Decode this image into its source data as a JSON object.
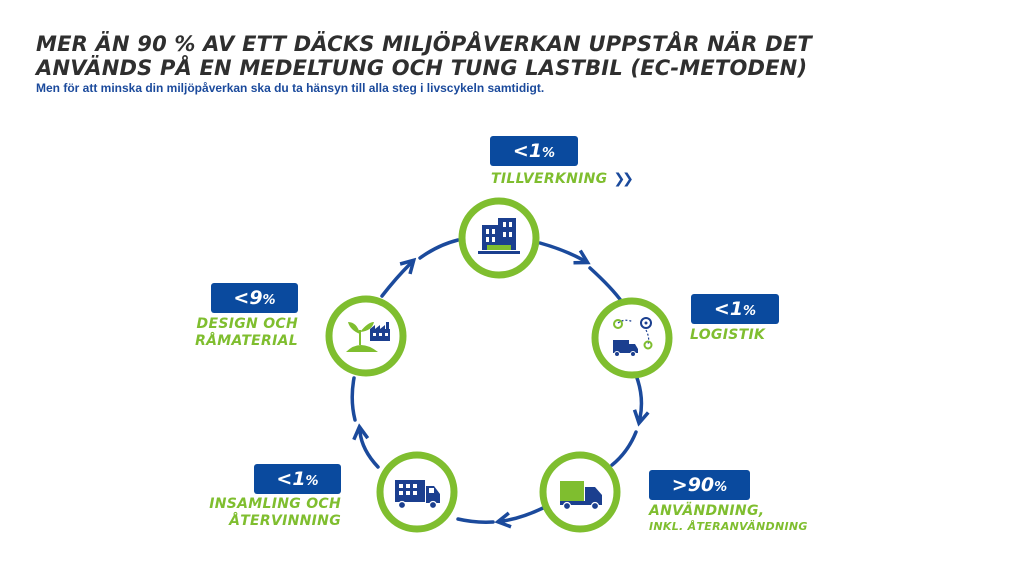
{
  "header": {
    "title_line1": "MER ÄN 90 % AV ETT DÄCKS MILJÖPÅVERKAN UPPSTÅR NÄR DET",
    "title_line2": "ANVÄNDS PÅ EN MEDELTUNG OCH TUNG LASTBIL (EC-METODEN)",
    "subtitle": "Men för att minska din miljöpåverkan ska du ta hänsyn till alla steg i livscykeln samtidigt."
  },
  "colors": {
    "blue": "#0a4a9e",
    "green": "#7fbe2f",
    "title": "#2f2f2f"
  },
  "stages": [
    {
      "id": "tillverkning",
      "value": "<1",
      "unit": "%",
      "label1": "TILLVERKNING",
      "label2": "",
      "icon": "factory-building-icon"
    },
    {
      "id": "logistik",
      "value": "<1",
      "unit": "%",
      "label1": "LOGISTIK",
      "label2": "",
      "icon": "truck-route-icon"
    },
    {
      "id": "anvandning",
      "value": ">90",
      "unit": "%",
      "label1": "ANVÄNDNING,",
      "label2": "INKL. ÅTERANVÄNDNING",
      "icon": "truck-icon"
    },
    {
      "id": "insamling",
      "value": "<1",
      "unit": "%",
      "label1": "INSAMLING OCH",
      "label2": "ÅTERVINNING",
      "icon": "recycling-truck-icon"
    },
    {
      "id": "design",
      "value": "<9",
      "unit": "%",
      "label1": "DESIGN OCH",
      "label2": "RÅMATERIAL",
      "icon": "plant-factory-icon"
    }
  ]
}
